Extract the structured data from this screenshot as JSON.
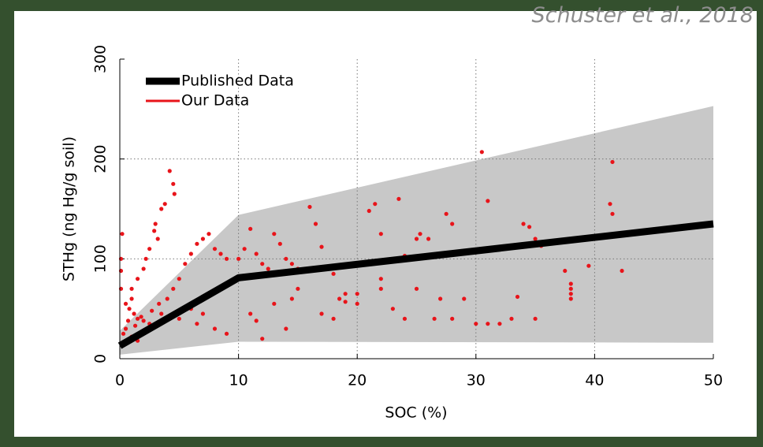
{
  "citation": "Schuster et al., 2018",
  "chart_data": {
    "type": "scatter",
    "xlabel": "SOC (%)",
    "ylabel": "STHg (ng Hg/g soil)",
    "xlim": [
      0,
      50
    ],
    "ylim": [
      0,
      300
    ],
    "xticks": [
      0,
      10,
      20,
      30,
      40,
      50
    ],
    "yticks": [
      0,
      100,
      200,
      300
    ],
    "grid": true,
    "legend": "upper left",
    "band": {
      "x": [
        0,
        10,
        50
      ],
      "lower": [
        4,
        17,
        16
      ],
      "upper": [
        28,
        144,
        253
      ],
      "color": "#c8c8c8"
    },
    "series": [
      {
        "name": "Published Data",
        "type": "line",
        "color": "#000000",
        "x": [
          0,
          10,
          50
        ],
        "values": [
          13,
          81,
          135
        ]
      },
      {
        "name": "Our Data",
        "type": "scatter",
        "color": "#e8141a",
        "x": [
          0.2,
          0.1,
          0.1,
          0.1,
          4.2,
          4.5,
          4.6,
          3.5,
          3.8,
          3,
          2.9,
          3.2,
          2.5,
          2.2,
          2,
          1.5,
          1,
          1,
          0.5,
          0.8,
          1.2,
          1.5,
          2,
          2.5,
          3,
          0.5,
          0.3,
          1,
          1.5,
          2,
          3.5,
          4,
          4.5,
          5,
          5.5,
          6,
          6.5,
          7,
          7.5,
          8,
          8.5,
          9,
          6,
          5,
          6.5,
          7,
          8,
          9,
          10,
          10.5,
          11,
          11.5,
          12,
          12.5,
          13,
          13.5,
          14,
          14.5,
          15,
          11,
          11.5,
          12,
          13,
          14,
          14.5,
          15,
          16,
          16.5,
          17,
          17.5,
          18,
          18.5,
          17,
          18,
          19,
          20,
          21,
          21.5,
          22,
          22,
          22,
          23,
          23.5,
          24,
          25,
          25.3,
          25,
          26,
          26.5,
          27,
          27.5,
          28,
          28,
          29,
          30,
          30.5,
          31,
          31,
          32,
          33,
          33.5,
          34,
          34.5,
          35,
          35,
          35.5,
          37.5,
          38,
          38,
          38,
          38,
          39.5,
          41.3,
          41.5,
          41.5,
          42.3,
          24,
          19,
          20,
          1.8,
          2.7,
          0.7,
          1.3,
          3.3
        ],
        "values": [
          125,
          100,
          88,
          70,
          188,
          175,
          165,
          150,
          155,
          135,
          128,
          120,
          110,
          100,
          90,
          80,
          70,
          60,
          55,
          50,
          45,
          40,
          38,
          35,
          32,
          30,
          25,
          22,
          18,
          28,
          45,
          60,
          70,
          80,
          95,
          105,
          115,
          120,
          125,
          110,
          105,
          100,
          50,
          40,
          35,
          45,
          30,
          25,
          100,
          110,
          130,
          105,
          95,
          90,
          125,
          115,
          100,
          95,
          90,
          45,
          38,
          20,
          55,
          30,
          60,
          70,
          152,
          135,
          112,
          90,
          85,
          60,
          45,
          40,
          65,
          65,
          148,
          155,
          125,
          80,
          70,
          50,
          160,
          40,
          120,
          125,
          70,
          120,
          40,
          60,
          145,
          135,
          40,
          60,
          35,
          207,
          158,
          35,
          35,
          40,
          62,
          135,
          132,
          120,
          40,
          113,
          88,
          75,
          70,
          65,
          60,
          93,
          155,
          197,
          145,
          88,
          103,
          57,
          55,
          42,
          48,
          38,
          33,
          55
        ]
      }
    ]
  }
}
